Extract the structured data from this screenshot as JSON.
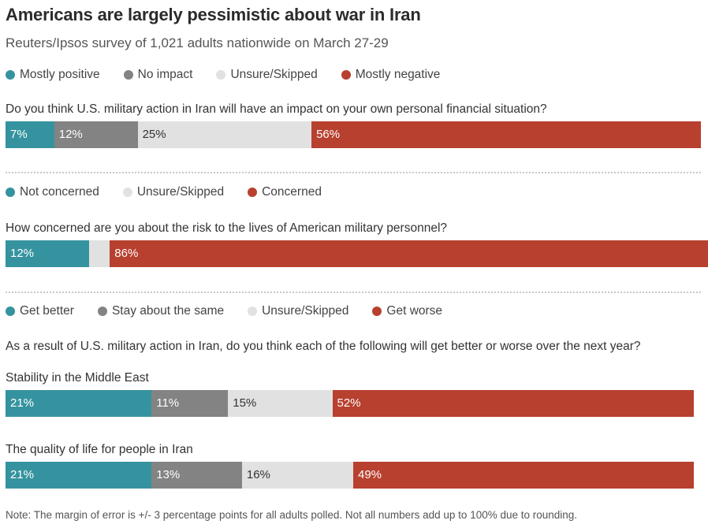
{
  "title": "Americans are largely pessimistic about war in Iran",
  "subtitle": "Reuters/Ipsos survey of 1,021 adults nationwide on March 27-29",
  "note": "Note:  The margin of error is +/- 3 percentage points for all adults polled. Not all numbers add up to 100% due to rounding.",
  "colors": {
    "teal": "#35939f",
    "gray": "#838383",
    "light": "#e1e1e1",
    "red": "#b8402f"
  },
  "chart_data": [
    {
      "type": "bar",
      "orientation": "horizontal-stacked-100",
      "legend": [
        "Mostly positive",
        "No impact",
        "Unsure/Skipped",
        "Mostly negative"
      ],
      "legend_colors": [
        "#35939f",
        "#838383",
        "#e1e1e1",
        "#b8402f"
      ],
      "question": "Do you think U.S. military action in Iran will have an impact on your own personal financial situation?",
      "bars": [
        {
          "label": "",
          "values": [
            7,
            12,
            25,
            56
          ],
          "labels": [
            "7%",
            "12%",
            "25%",
            "56%"
          ]
        }
      ]
    },
    {
      "type": "bar",
      "orientation": "horizontal-stacked-100",
      "legend": [
        "Not concerned",
        "Unsure/Skipped",
        "Concerned"
      ],
      "legend_colors": [
        "#35939f",
        "#e1e1e1",
        "#b8402f"
      ],
      "question": "How concerned are you about the risk to the lives of American military personnel?",
      "bars": [
        {
          "label": "",
          "values": [
            12,
            3,
            86
          ],
          "labels": [
            "12%",
            "",
            "86%"
          ]
        }
      ]
    },
    {
      "type": "bar",
      "orientation": "horizontal-stacked-100",
      "legend": [
        "Get better",
        "Stay about the same",
        "Unsure/Skipped",
        "Get worse"
      ],
      "legend_colors": [
        "#35939f",
        "#838383",
        "#e1e1e1",
        "#b8402f"
      ],
      "question": "As a result of U.S. military action in Iran, do you think each of the following will get better or worse over the next year?",
      "bars": [
        {
          "label": "Stability in the Middle East",
          "values": [
            21,
            11,
            15,
            52
          ],
          "labels": [
            "21%",
            "11%",
            "15%",
            "52%"
          ]
        },
        {
          "label": "The quality of life for people in Iran",
          "values": [
            21,
            13,
            16,
            49
          ],
          "labels": [
            "21%",
            "13%",
            "16%",
            "49%"
          ]
        }
      ]
    }
  ]
}
